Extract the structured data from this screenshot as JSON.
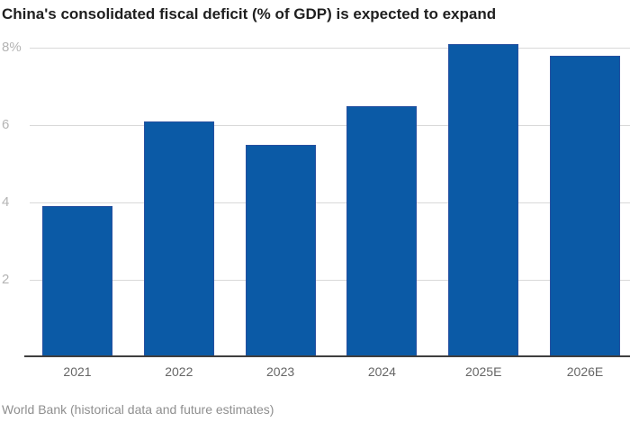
{
  "chart": {
    "title": "China's consolidated fiscal deficit (% of GDP) is expected to expand",
    "source": "World Bank (historical data and future estimates)"
  },
  "chart_data": {
    "type": "bar",
    "title": "China's consolidated fiscal deficit (% of GDP) is expected to expand",
    "xlabel": "",
    "ylabel": "",
    "categories": [
      "2021",
      "2022",
      "2023",
      "2024",
      "2025E",
      "2026E"
    ],
    "values": [
      3.9,
      6.1,
      5.5,
      6.5,
      8.1,
      7.8
    ],
    "ylim": [
      0,
      8.6
    ],
    "yticks": [
      {
        "value": 2,
        "label": "2"
      },
      {
        "value": 4,
        "label": "4"
      },
      {
        "value": 6,
        "label": "6"
      },
      {
        "value": 8,
        "label": "8%"
      }
    ],
    "grid": true,
    "legend": "none",
    "source": "World Bank (historical data and future estimates)",
    "colors": {
      "bar_fill": "#0b5aa6",
      "bar_edge": "#2750a0",
      "gridline": "#d9d9d9",
      "axis_line": "#3f3f3f",
      "ytick_label": "#b4b4b4",
      "xtick_label": "#666666",
      "title": "#1f1f1f",
      "source": "#8f8f8f"
    }
  }
}
